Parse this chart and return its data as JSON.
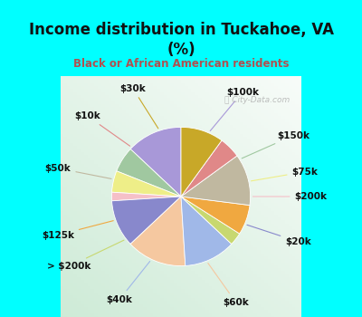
{
  "title": "Income distribution in Tuckahoe, VA\n(%)",
  "subtitle": "Black or African American residents",
  "title_color": "#111111",
  "subtitle_color": "#b05050",
  "background_cyan": "#00ffff",
  "watermark": "City-Data.com",
  "labels": [
    "$100k",
    "$150k",
    "$75k",
    "$200k",
    "$20k",
    "$60k",
    "$40k",
    "> $200k",
    "$125k",
    "$50k",
    "$10k",
    "$30k"
  ],
  "values": [
    13,
    6,
    5,
    2,
    11,
    14,
    12,
    3,
    7,
    12,
    5,
    10
  ],
  "colors": [
    "#a898d8",
    "#a0c8a0",
    "#eeee88",
    "#f5c0c8",
    "#8888cc",
    "#f5c8a0",
    "#a0b8e8",
    "#c8d870",
    "#f0a840",
    "#c0b8a0",
    "#e08888",
    "#c8a828"
  ],
  "startangle": 90,
  "label_fontsize": 7.5
}
